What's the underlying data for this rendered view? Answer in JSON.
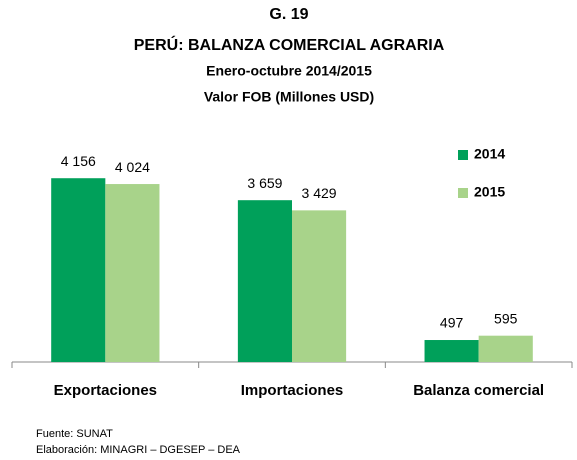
{
  "chart_data": {
    "type": "bar",
    "title": "G. 19",
    "subtitle": [
      "PERÚ: BALANZA COMERCIAL AGRARIA",
      "Enero-octubre 2014/2015",
      "Valor FOB (Millones USD)"
    ],
    "categories": [
      "Exportaciones",
      "Importaciones",
      "Balanza comercial"
    ],
    "series": [
      {
        "name": "2014",
        "color": "#00a05a",
        "values": [
          4156,
          3659,
          497
        ],
        "value_labels": [
          "4 156",
          "3 659",
          "497"
        ]
      },
      {
        "name": "2015",
        "color": "#a8d38a",
        "values": [
          4024,
          3429,
          595
        ],
        "value_labels": [
          "4 024",
          "3 429",
          "595"
        ]
      }
    ],
    "ylim": [
      0,
      4500
    ],
    "legend": "top-right",
    "notes": [
      "Fuente: SUNAT",
      "Elaboración: MINAGRI – DGESEP – DEA"
    ]
  }
}
